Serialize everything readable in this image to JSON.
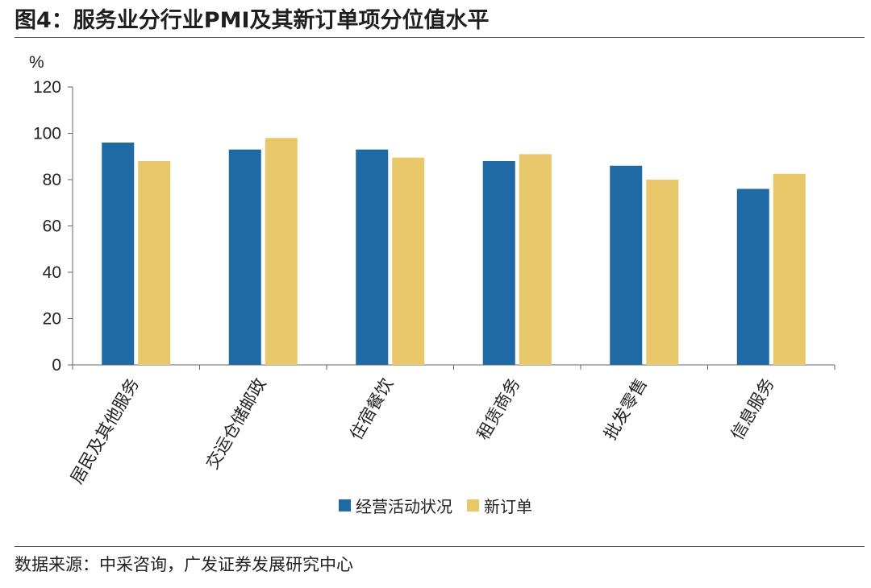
{
  "figure_title": "图4：服务业分行业PMI及其新订单项分位值水平",
  "source_note": "数据来源：中采咨询，广发证券发展研究中心",
  "chart_data": {
    "type": "bar",
    "unit_label": "%",
    "categories": [
      "居民及其他服务",
      "交运仓储邮政",
      "住宿餐饮",
      "租赁商务",
      "批发零售",
      "信息服务"
    ],
    "series": [
      {
        "name": "经营活动状况",
        "color": "#1f6aa5",
        "values": [
          96,
          93,
          93,
          88,
          86,
          76
        ]
      },
      {
        "name": "新订单",
        "color": "#e8c86a",
        "values": [
          88,
          98,
          89.5,
          91,
          80,
          82.5
        ]
      }
    ],
    "ylim": [
      0,
      120
    ],
    "yticks": [
      0,
      20,
      40,
      60,
      80,
      100,
      120
    ],
    "grid": false,
    "legend_position": "bottom"
  }
}
